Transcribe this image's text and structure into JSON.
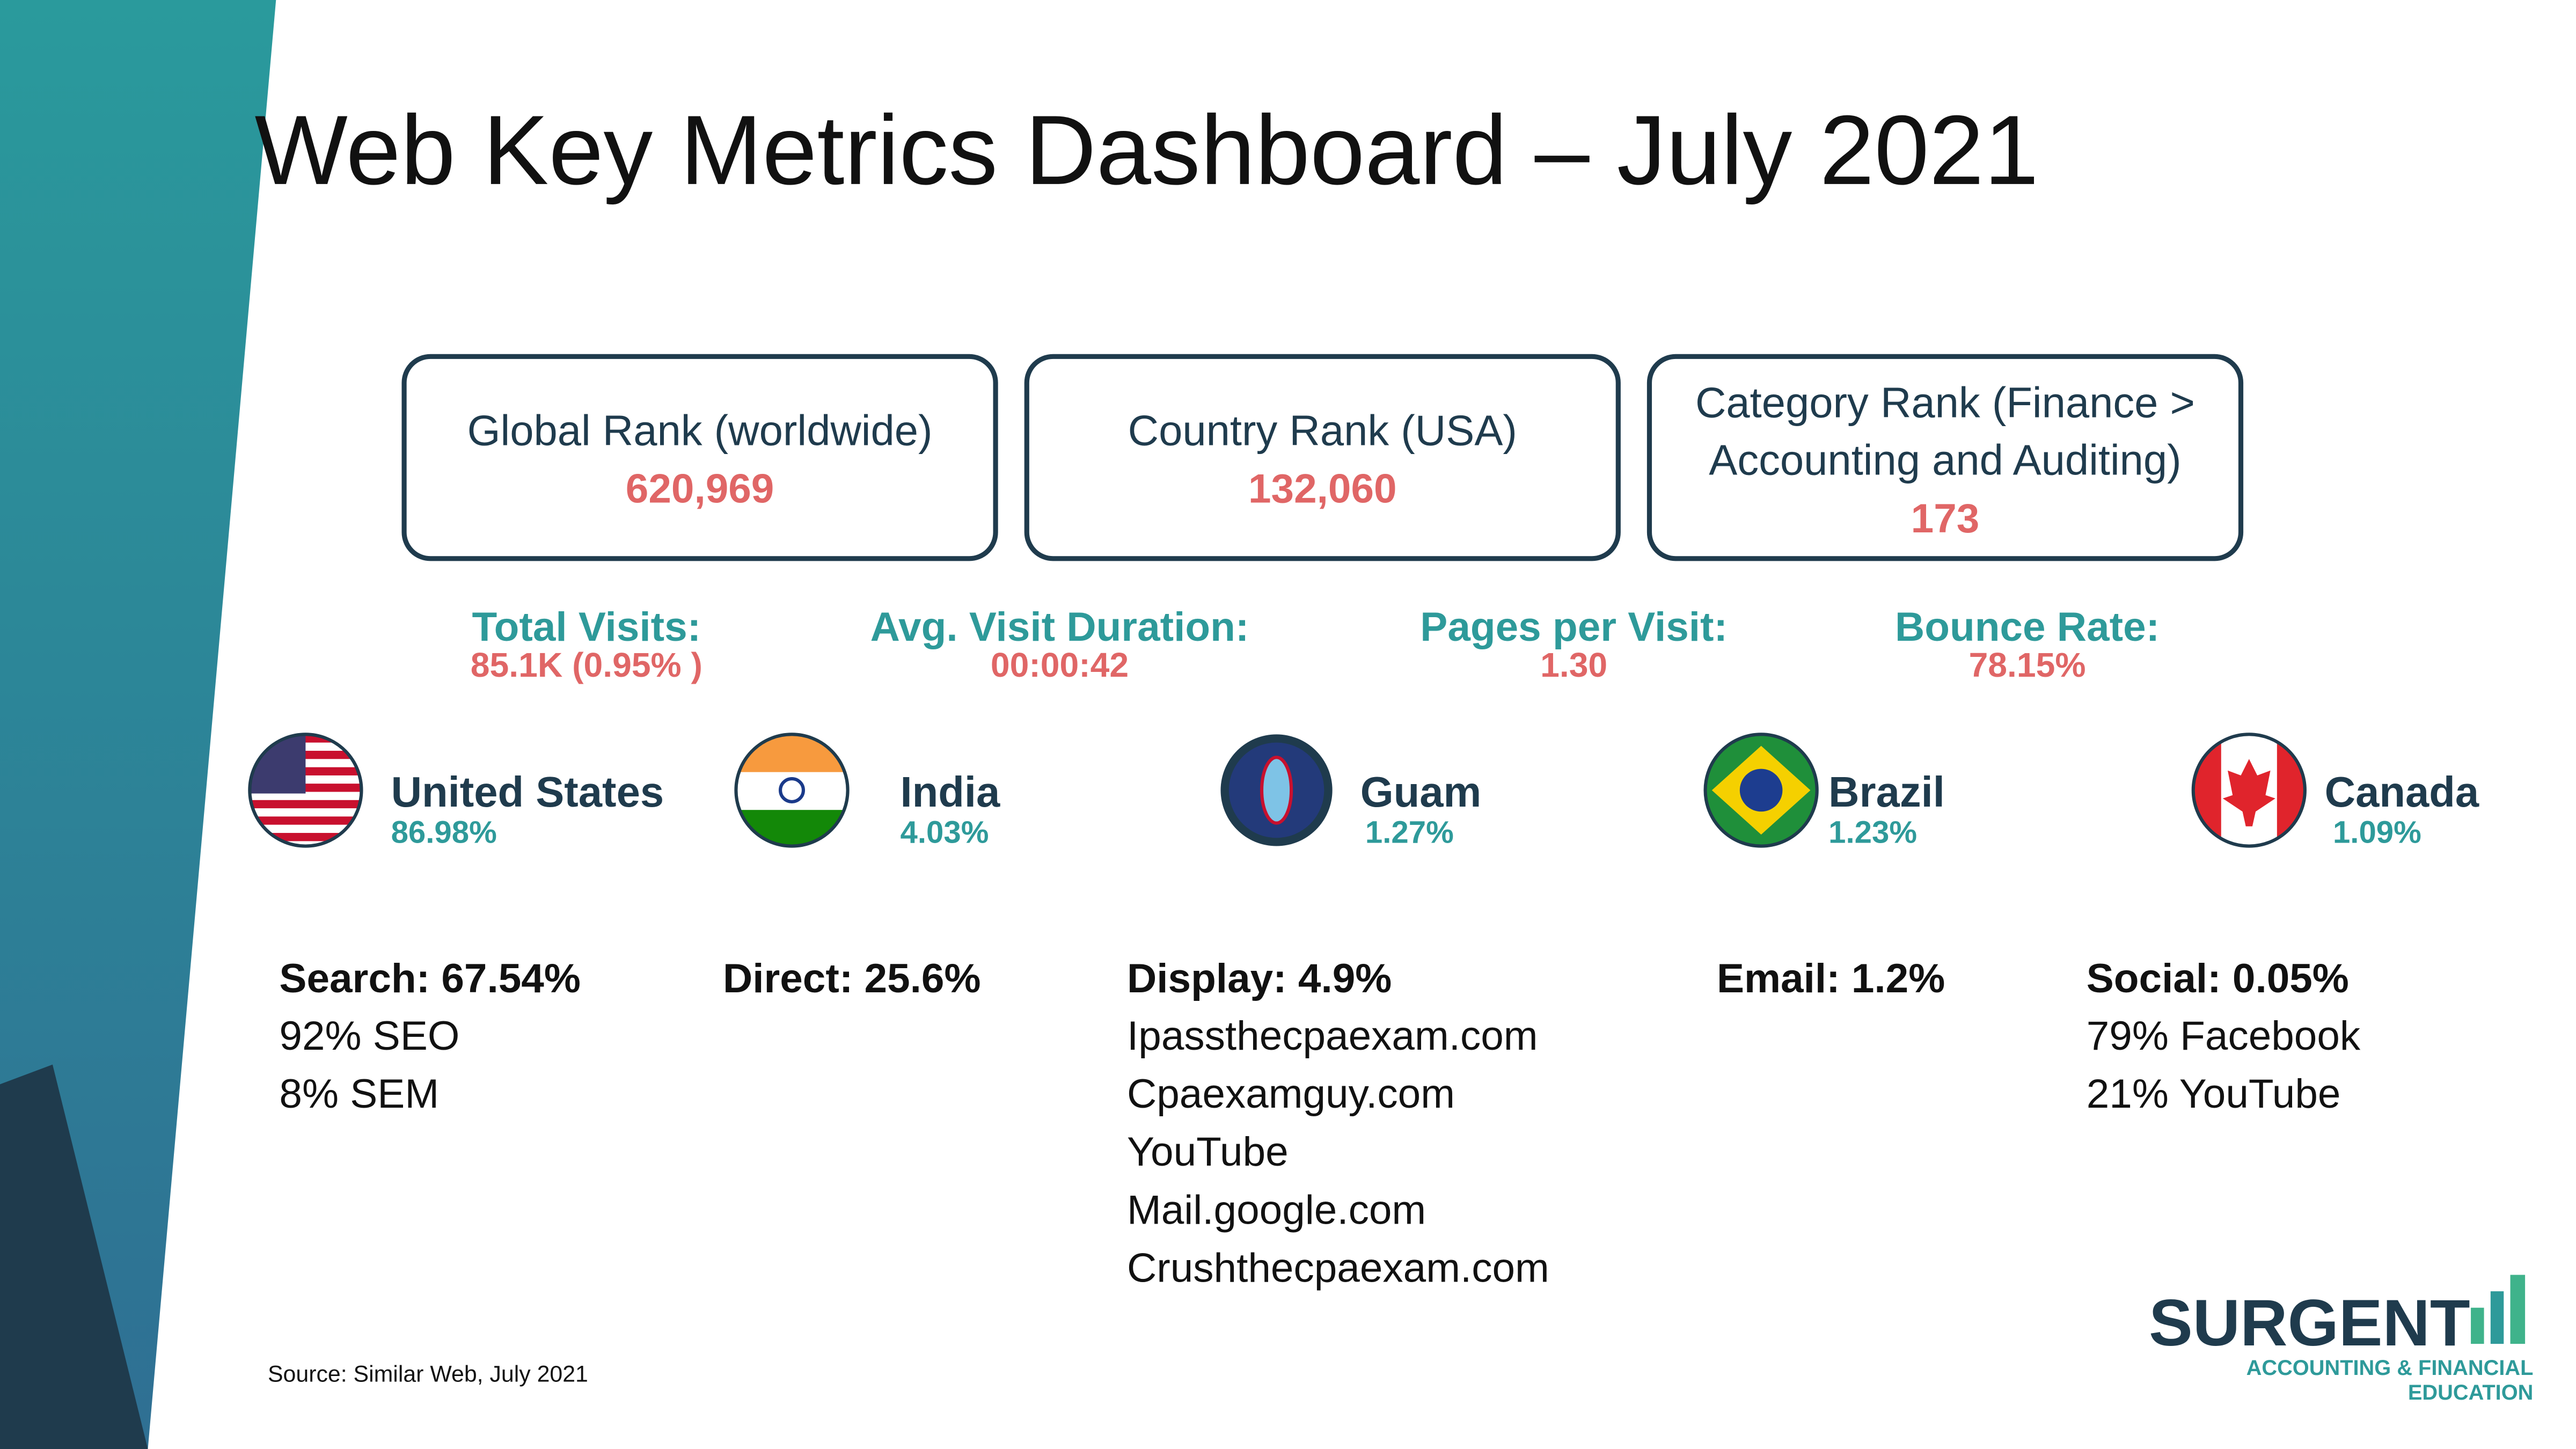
{
  "title": "Web Key Metrics Dashboard – July 2021",
  "rank_cards": [
    {
      "label_lines": [
        "Global Rank (worldwide)"
      ],
      "value": "620,969"
    },
    {
      "label_lines": [
        "Country Rank (USA)"
      ],
      "value": "132,060"
    },
    {
      "label_lines": [
        "Category Rank (Finance >",
        "Accounting and Auditing)"
      ],
      "value": "173"
    }
  ],
  "metrics": [
    {
      "label": "Total Visits:",
      "value": "85.1K (0.95% )"
    },
    {
      "label": "Avg. Visit Duration:",
      "value": "00:00:42"
    },
    {
      "label": "Pages per Visit:",
      "value": "1.30"
    },
    {
      "label": "Bounce Rate:",
      "value": "78.15%"
    }
  ],
  "countries": [
    {
      "name": "United States",
      "share": "86.98%"
    },
    {
      "name": "India",
      "share": "4.03%"
    },
    {
      "name": "Guam",
      "share": "1.27%"
    },
    {
      "name": "Brazil",
      "share": "1.23%"
    },
    {
      "name": "Canada",
      "share": "1.09%"
    }
  ],
  "traffic_sources": [
    {
      "heading": "Search: 67.54%",
      "lines": [
        "92% SEO",
        "8% SEM"
      ]
    },
    {
      "heading": "Direct: 25.6%",
      "lines": []
    },
    {
      "heading": "Display: 4.9%",
      "lines": [
        "Ipassthecpaexam.com",
        "Cpaexamguy.com",
        "YouTube",
        "Mail.google.com",
        "Crushthecpaexam.com"
      ]
    },
    {
      "heading": "Email: 1.2%",
      "lines": []
    },
    {
      "heading": "Social: 0.05%",
      "lines": [
        "79% Facebook",
        "21% YouTube"
      ]
    }
  ],
  "source_note": "Source: Similar Web, July 2021",
  "logo": {
    "name": "SURGENT",
    "tagline_lines": [
      "ACCOUNTING & FINANCIAL",
      "EDUCATION"
    ]
  }
}
